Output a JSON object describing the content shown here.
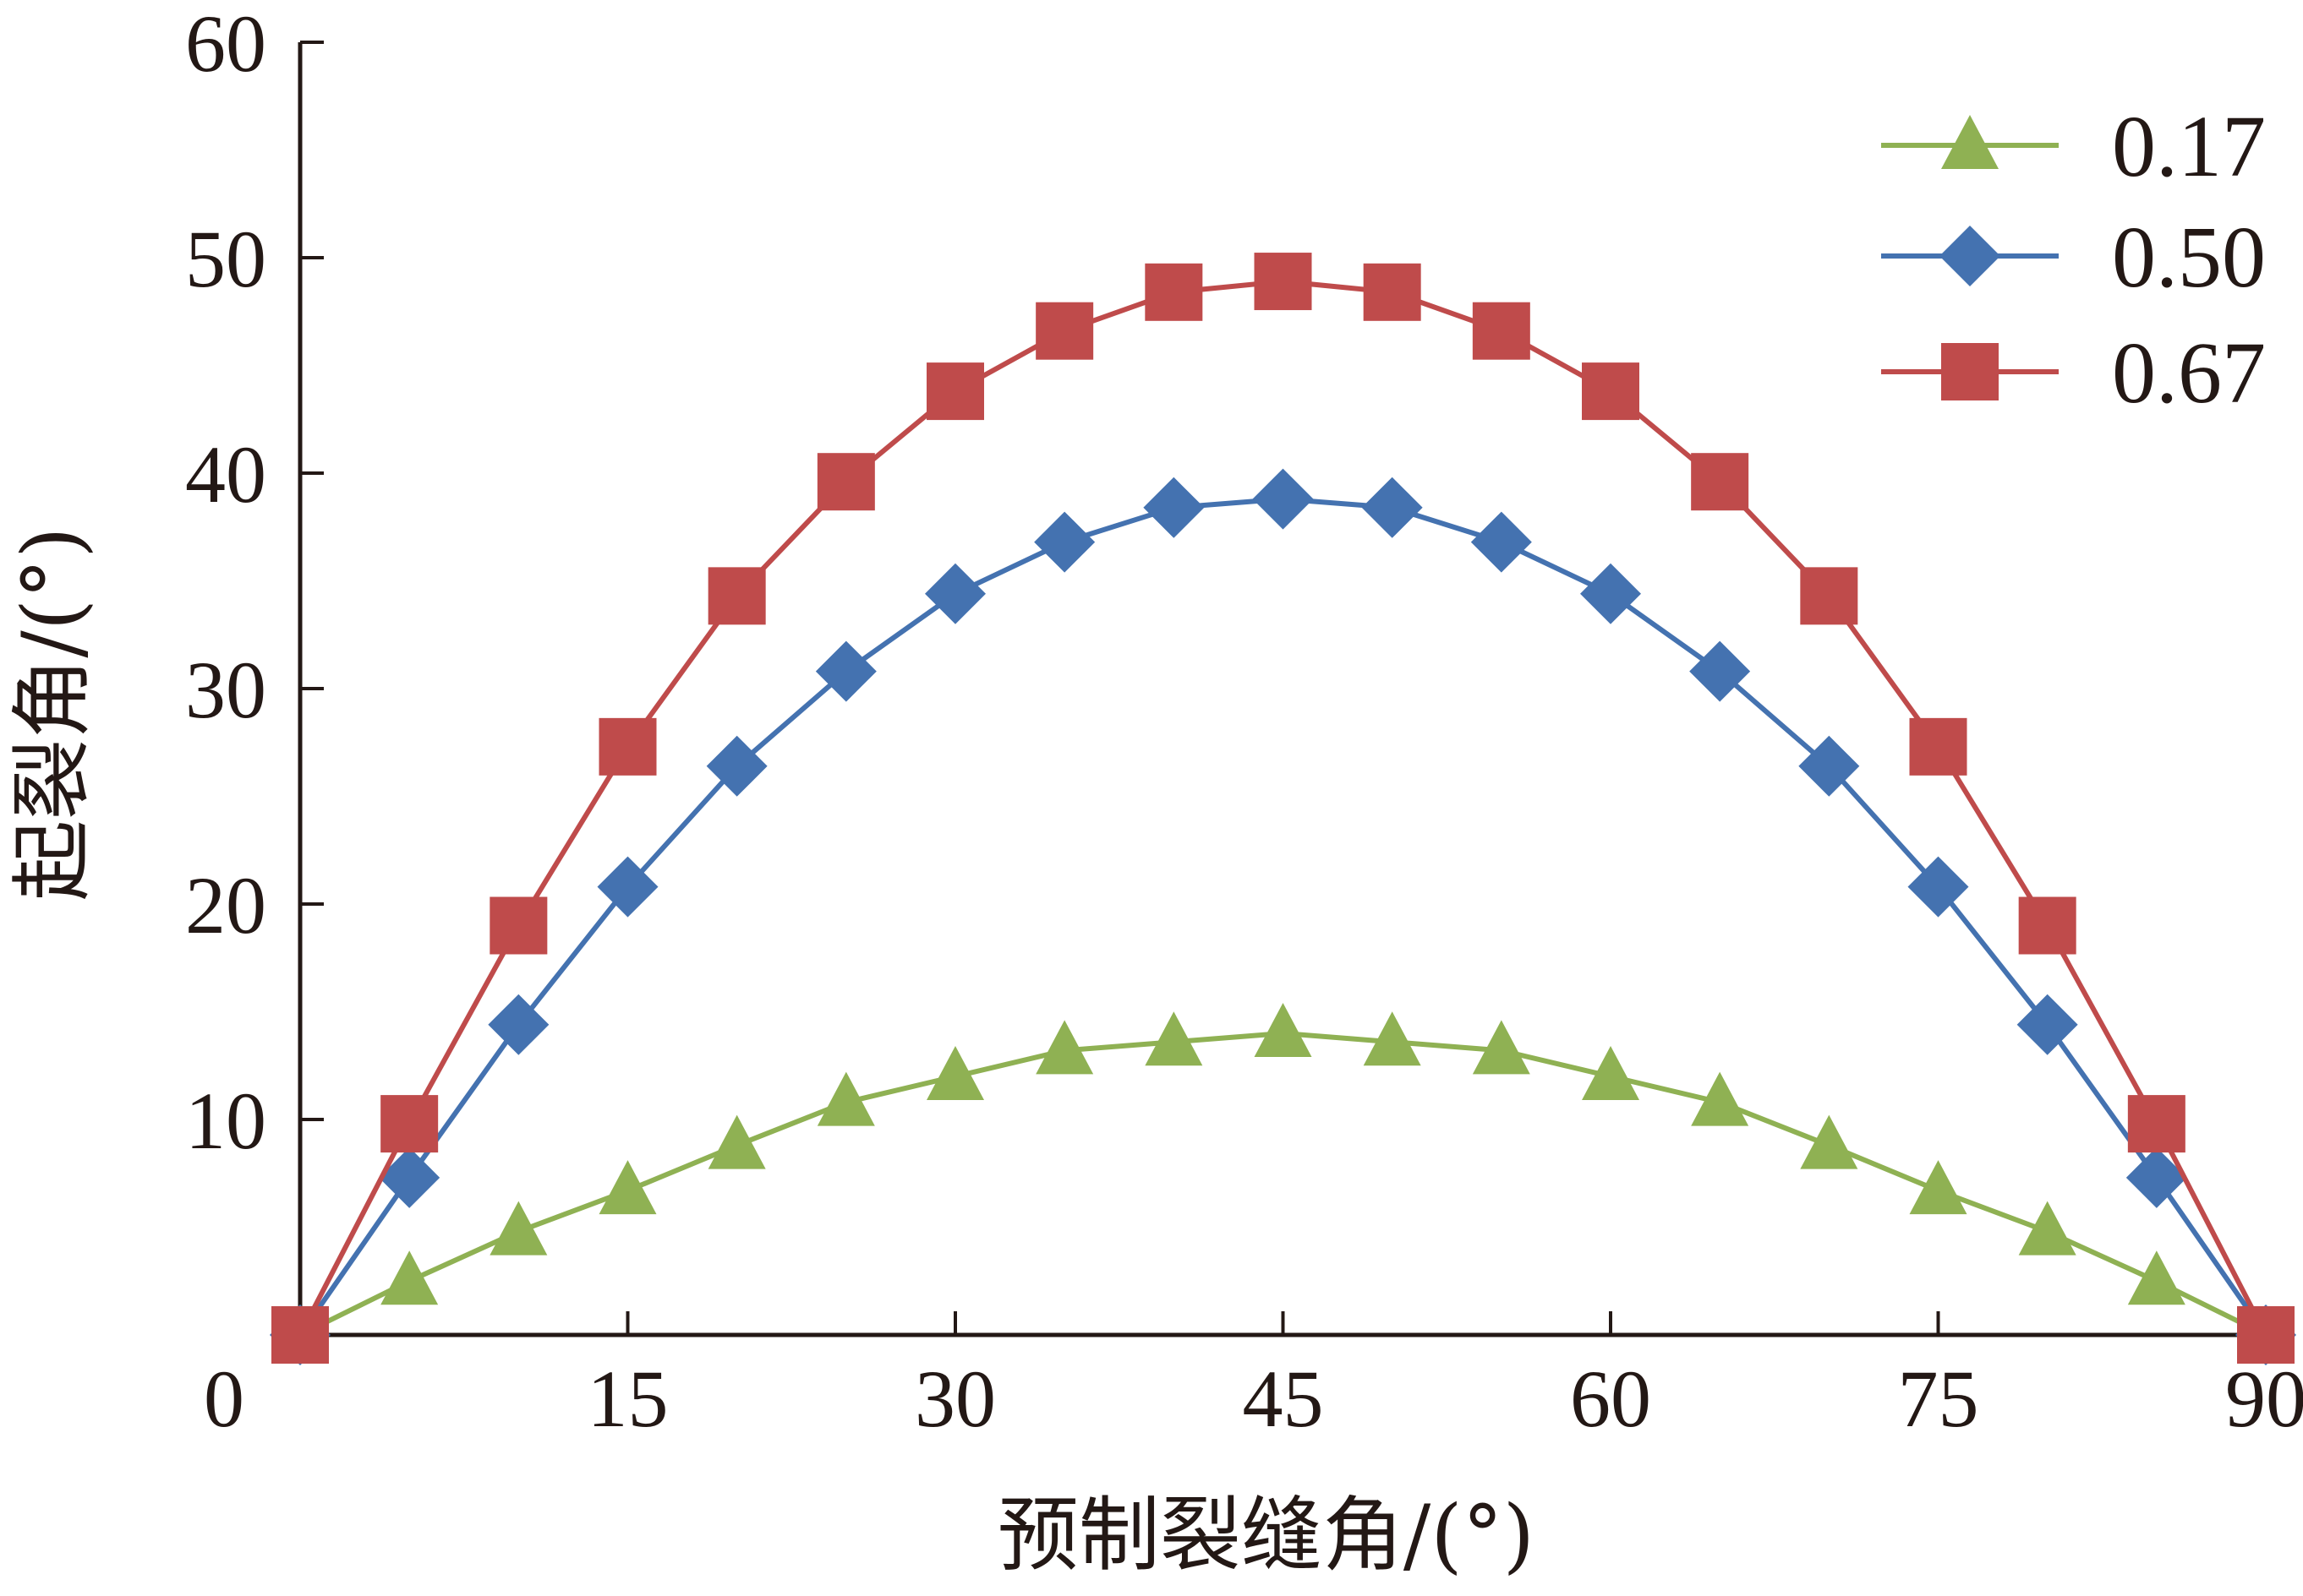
{
  "chart_data": {
    "type": "line",
    "title": "",
    "xlabel": "预制裂缝角/(°)",
    "ylabel": "起裂角/(°)",
    "xlim": [
      0,
      90
    ],
    "ylim": [
      0,
      60
    ],
    "x_ticks": [
      "0",
      "15",
      "30",
      "45",
      "60",
      "75",
      "90"
    ],
    "y_ticks": [
      "10",
      "20",
      "30",
      "40",
      "50",
      "60"
    ],
    "legend_position": "top-right",
    "grid": false,
    "x": [
      0,
      5,
      10,
      15,
      20,
      25,
      30,
      35,
      40,
      45,
      50,
      55,
      60,
      65,
      70,
      75,
      80,
      85,
      90
    ],
    "series": [
      {
        "name": "0.17",
        "color": "#8fb153",
        "marker": "triangle",
        "values": [
          0,
          2.5,
          4.8,
          6.7,
          8.8,
          10.8,
          12.0,
          13.2,
          13.6,
          14.0,
          13.6,
          13.2,
          12.0,
          10.8,
          8.8,
          6.7,
          4.8,
          2.5,
          0
        ]
      },
      {
        "name": "0.50",
        "color": "#4472b0",
        "marker": "diamond",
        "values": [
          0,
          7.3,
          14.4,
          20.8,
          26.4,
          30.8,
          34.4,
          36.8,
          38.4,
          38.8,
          38.4,
          36.8,
          34.4,
          30.8,
          26.4,
          20.8,
          14.4,
          7.3,
          0
        ]
      },
      {
        "name": "0.67",
        "color": "#bf4b4b",
        "marker": "square",
        "values": [
          0,
          9.8,
          19.0,
          27.3,
          34.3,
          39.6,
          43.8,
          46.6,
          48.4,
          48.9,
          48.4,
          46.6,
          43.8,
          39.6,
          34.3,
          27.3,
          19.0,
          9.8,
          0
        ]
      }
    ]
  }
}
